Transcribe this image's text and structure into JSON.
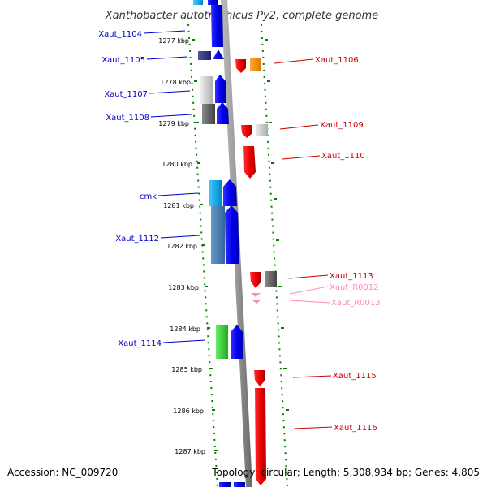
{
  "title": "Xanthobacter autotrophicus Py2, complete genome",
  "footer": {
    "accession": "Accession: NC_009720",
    "topology": "Topology: circular; Length: 5,308,934 bp; Genes: 4,805"
  },
  "kbp_ticks": [
    {
      "label": "1277 kbp"
    },
    {
      "label": "1278 kbp"
    },
    {
      "label": "1279 kbp"
    },
    {
      "label": "1280 kbp"
    },
    {
      "label": "1281 kbp"
    },
    {
      "label": "1282 kbp"
    },
    {
      "label": "1283 kbp"
    },
    {
      "label": "1284 kbp"
    },
    {
      "label": "1285 kbp"
    },
    {
      "label": "1286 kbp"
    },
    {
      "label": "1287 kbp"
    }
  ],
  "left_genes": [
    {
      "name": "Xaut_1104",
      "color": "#0000ff"
    },
    {
      "name": "Xaut_1105",
      "color": "#0000ff"
    },
    {
      "name": "Xaut_1107",
      "color": "#0000ff"
    },
    {
      "name": "Xaut_1108",
      "color": "#0000ff"
    },
    {
      "name": "cmk",
      "color": "#0000ff"
    },
    {
      "name": "Xaut_1112",
      "color": "#0000ff"
    },
    {
      "name": "Xaut_1114",
      "color": "#0000ff"
    }
  ],
  "right_genes": [
    {
      "name": "Xaut_1106",
      "color": "#ff0000"
    },
    {
      "name": "Xaut_1109",
      "color": "#ff0000"
    },
    {
      "name": "Xaut_1110",
      "color": "#ff0000"
    },
    {
      "name": "Xaut_1113",
      "color": "#ff0000"
    },
    {
      "name": "Xaut_R0012",
      "color": "#ff88bb"
    },
    {
      "name": "Xaut_R0013",
      "color": "#ff88bb"
    },
    {
      "name": "Xaut_1115",
      "color": "#ff0000"
    },
    {
      "name": "Xaut_1116",
      "color": "#ff0000"
    }
  ],
  "colors": {
    "forward_strand": "#0000ff",
    "reverse_strand": "#ff0000",
    "rna": "#ff88bb",
    "scale_dots": "#008000",
    "backbone": "#888888"
  }
}
